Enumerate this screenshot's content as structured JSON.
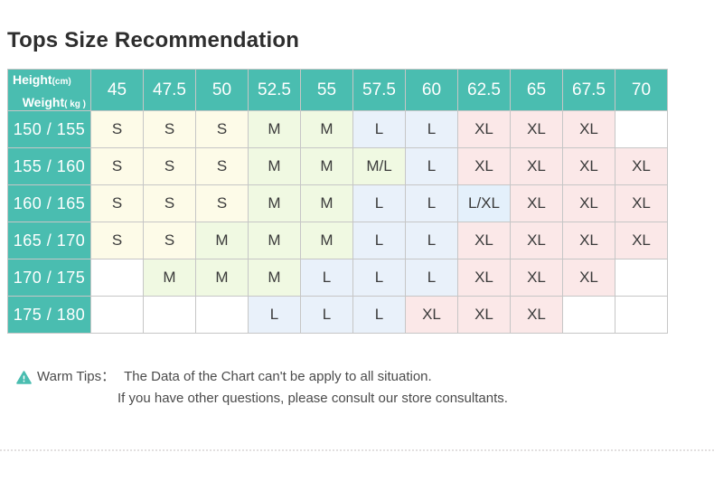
{
  "page": {
    "title": "Tops Size Recommendation"
  },
  "colors": {
    "teal": "#4abdb0",
    "grid_line": "#c6c6c6",
    "outer_border": "#9f9f9f",
    "cell_text": "#3b3b3b",
    "size_S_bg": "#fdfbe8",
    "size_M_bg": "#f0f9e2",
    "size_L_bg": "#e9f1fa",
    "size_XL_bg": "#fbe8e8",
    "size_LXL_bg": "#e4f0fb",
    "empty_bg": "#ffffff"
  },
  "table": {
    "corner": {
      "top": "Weight",
      "top_unit": "( kg )",
      "bottom": "Height",
      "bottom_unit": "(cm)"
    },
    "weight_headers": [
      "45",
      "47.5",
      "50",
      "52.5",
      "55",
      "57.5",
      "60",
      "62.5",
      "65",
      "67.5",
      "70"
    ],
    "rows": [
      {
        "height": "150 / 155",
        "sizes": [
          "S",
          "S",
          "S",
          "M",
          "M",
          "L",
          "L",
          "XL",
          "XL",
          "XL",
          ""
        ]
      },
      {
        "height": "155 / 160",
        "sizes": [
          "S",
          "S",
          "S",
          "M",
          "M",
          "M/L",
          "L",
          "XL",
          "XL",
          "XL",
          "XL"
        ]
      },
      {
        "height": "160 / 165",
        "sizes": [
          "S",
          "S",
          "S",
          "M",
          "M",
          "L",
          "L",
          "L/XL",
          "XL",
          "XL",
          "XL"
        ]
      },
      {
        "height": "165 / 170",
        "sizes": [
          "S",
          "S",
          "M",
          "M",
          "M",
          "L",
          "L",
          "XL",
          "XL",
          "XL",
          "XL"
        ]
      },
      {
        "height": "170 / 175",
        "sizes": [
          "",
          "M",
          "M",
          "M",
          "L",
          "L",
          "L",
          "XL",
          "XL",
          "XL",
          ""
        ]
      },
      {
        "height": "175 / 180",
        "sizes": [
          "",
          "",
          "",
          "L",
          "L",
          "L",
          "XL",
          "XL",
          "XL",
          "",
          ""
        ]
      }
    ],
    "size_colors": {
      "S": "#fdfbe8",
      "M": "#f0f9e2",
      "M/L": "#f0f9e2",
      "L": "#e9f1fa",
      "L/XL": "#e4f0fb",
      "XL": "#fbe8e8",
      "": "#ffffff"
    }
  },
  "warm_tips": {
    "label": "Warm Tips：",
    "line1": "The Data of the Chart can't be apply to all situation.",
    "line2": "If you have other questions, please consult our store consultants."
  },
  "chart_data": {
    "type": "table",
    "title": "Tops Size Recommendation",
    "column_axis": {
      "label": "Weight",
      "unit": "kg",
      "values": [
        45,
        47.5,
        50,
        52.5,
        55,
        57.5,
        60,
        62.5,
        65,
        67.5,
        70
      ]
    },
    "row_axis": {
      "label": "Height",
      "unit": "cm",
      "values": [
        "150 / 155",
        "155 / 160",
        "160 / 165",
        "165 / 170",
        "170 / 175",
        "175 / 180"
      ]
    },
    "cells": [
      [
        "S",
        "S",
        "S",
        "M",
        "M",
        "L",
        "L",
        "XL",
        "XL",
        "XL",
        ""
      ],
      [
        "S",
        "S",
        "S",
        "M",
        "M",
        "M/L",
        "L",
        "XL",
        "XL",
        "XL",
        "XL"
      ],
      [
        "S",
        "S",
        "S",
        "M",
        "M",
        "L",
        "L",
        "L/XL",
        "XL",
        "XL",
        "XL"
      ],
      [
        "S",
        "S",
        "M",
        "M",
        "M",
        "L",
        "L",
        "XL",
        "XL",
        "XL",
        "XL"
      ],
      [
        "",
        "M",
        "M",
        "M",
        "L",
        "L",
        "L",
        "XL",
        "XL",
        "XL",
        ""
      ],
      [
        "",
        "",
        "",
        "L",
        "L",
        "L",
        "XL",
        "XL",
        "XL",
        "",
        ""
      ]
    ],
    "legend": null,
    "notes": [
      "The Data of the Chart can't be apply to all situation.",
      "If you have other questions, please consult our store consultants."
    ]
  }
}
